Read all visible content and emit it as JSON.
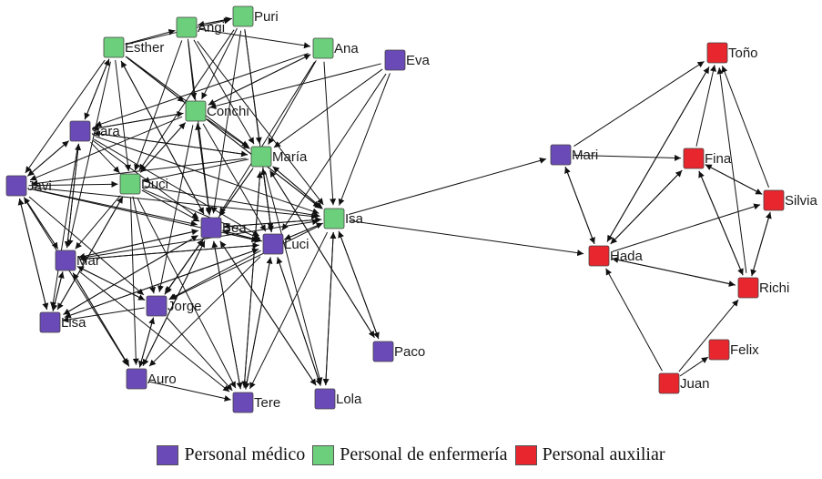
{
  "colors": {
    "medico": "#6a4ab6",
    "enfermeria": "#6ccf7b",
    "auxiliar": "#e8262e",
    "edge": "#111111"
  },
  "legend": [
    {
      "group": "medico",
      "label": "Personal médico"
    },
    {
      "group": "enfermeria",
      "label": "Personal de enfermería"
    },
    {
      "group": "auxiliar",
      "label": "Personal auxiliar"
    }
  ],
  "nodes": [
    {
      "id": "Angi",
      "label": "Angi",
      "group": "enfermeria"
    },
    {
      "id": "Puri",
      "label": "Puri",
      "group": "enfermeria"
    },
    {
      "id": "Esther",
      "label": "Esther",
      "group": "enfermeria"
    },
    {
      "id": "Ana",
      "label": "Ana",
      "group": "enfermeria"
    },
    {
      "id": "Eva",
      "label": "Eva",
      "group": "medico"
    },
    {
      "id": "Conchi",
      "label": "Conchi",
      "group": "enfermeria"
    },
    {
      "id": "Sara",
      "label": "Sara",
      "group": "medico"
    },
    {
      "id": "Maria",
      "label": "María",
      "group": "enfermeria"
    },
    {
      "id": "Javi",
      "label": "Javi",
      "group": "medico"
    },
    {
      "id": "Duci",
      "label": "Duci",
      "group": "enfermeria"
    },
    {
      "id": "Isa",
      "label": "Isa",
      "group": "enfermeria"
    },
    {
      "id": "Bea",
      "label": "Bea",
      "group": "medico"
    },
    {
      "id": "Luci",
      "label": "Luci",
      "group": "medico"
    },
    {
      "id": "Mar",
      "label": "Mar",
      "group": "medico"
    },
    {
      "id": "Jorge",
      "label": "Jorge",
      "group": "medico"
    },
    {
      "id": "Lisa",
      "label": "Lisa",
      "group": "medico"
    },
    {
      "id": "Paco",
      "label": "Paco",
      "group": "medico"
    },
    {
      "id": "Auro",
      "label": "Auro",
      "group": "medico"
    },
    {
      "id": "Tere",
      "label": "Tere",
      "group": "medico"
    },
    {
      "id": "Lola",
      "label": "Lola",
      "group": "medico"
    },
    {
      "id": "Tono",
      "label": "Toño",
      "group": "auxiliar"
    },
    {
      "id": "Mari",
      "label": "Mari",
      "group": "medico"
    },
    {
      "id": "Fina",
      "label": "Fina",
      "group": "auxiliar"
    },
    {
      "id": "Silvia",
      "label": "Silvia",
      "group": "auxiliar"
    },
    {
      "id": "Hada",
      "label": "Hada",
      "group": "auxiliar"
    },
    {
      "id": "Richi",
      "label": "Richi",
      "group": "auxiliar"
    },
    {
      "id": "Felix",
      "label": "Felix",
      "group": "auxiliar"
    },
    {
      "id": "Juan",
      "label": "Juan",
      "group": "auxiliar"
    }
  ],
  "edges": [
    [
      "Esther",
      "Angi"
    ],
    [
      "Angi",
      "Puri"
    ],
    [
      "Puri",
      "Angi"
    ],
    [
      "Angi",
      "Ana"
    ],
    [
      "Esther",
      "Puri"
    ],
    [
      "Esther",
      "Conchi"
    ],
    [
      "Esther",
      "Sara"
    ],
    [
      "Esther",
      "Javi"
    ],
    [
      "Esther",
      "Maria"
    ],
    [
      "Esther",
      "Isa"
    ],
    [
      "Esther",
      "Bea"
    ],
    [
      "Esther",
      "Duci"
    ],
    [
      "Esther",
      "Mar"
    ],
    [
      "Sara",
      "Esther"
    ],
    [
      "Angi",
      "Conchi"
    ],
    [
      "Angi",
      "Maria"
    ],
    [
      "Angi",
      "Bea"
    ],
    [
      "Angi",
      "Duci"
    ],
    [
      "Angi",
      "Isa"
    ],
    [
      "Puri",
      "Conchi"
    ],
    [
      "Puri",
      "Maria"
    ],
    [
      "Puri",
      "Duci"
    ],
    [
      "Puri",
      "Bea"
    ],
    [
      "Puri",
      "Luci"
    ],
    [
      "Ana",
      "Conchi"
    ],
    [
      "Ana",
      "Maria"
    ],
    [
      "Ana",
      "Bea"
    ],
    [
      "Ana",
      "Isa"
    ],
    [
      "Ana",
      "Sara"
    ],
    [
      "Eva",
      "Maria"
    ],
    [
      "Eva",
      "Isa"
    ],
    [
      "Eva",
      "Luci"
    ],
    [
      "Eva",
      "Conchi"
    ],
    [
      "Conchi",
      "Ana"
    ],
    [
      "Conchi",
      "Sara"
    ],
    [
      "Conchi",
      "Javi"
    ],
    [
      "Conchi",
      "Maria"
    ],
    [
      "Conchi",
      "Isa"
    ],
    [
      "Conchi",
      "Bea"
    ],
    [
      "Conchi",
      "Duci"
    ],
    [
      "Conchi",
      "Luci"
    ],
    [
      "Conchi",
      "Jorge"
    ],
    [
      "Sara",
      "Conchi"
    ],
    [
      "Sara",
      "Maria"
    ],
    [
      "Sara",
      "Isa"
    ],
    [
      "Sara",
      "Bea"
    ],
    [
      "Sara",
      "Duci"
    ],
    [
      "Sara",
      "Javi"
    ],
    [
      "Sara",
      "Luci"
    ],
    [
      "Sara",
      "Mar"
    ],
    [
      "Sara",
      "Lisa"
    ],
    [
      "Maria",
      "Isa"
    ],
    [
      "Maria",
      "Bea"
    ],
    [
      "Maria",
      "Luci"
    ],
    [
      "Maria",
      "Javi"
    ],
    [
      "Maria",
      "Sara"
    ],
    [
      "Maria",
      "Duci"
    ],
    [
      "Maria",
      "Jorge"
    ],
    [
      "Maria",
      "Tere"
    ],
    [
      "Maria",
      "Lola"
    ],
    [
      "Maria",
      "Paco"
    ],
    [
      "Javi",
      "Sara"
    ],
    [
      "Javi",
      "Duci"
    ],
    [
      "Javi",
      "Bea"
    ],
    [
      "Javi",
      "Isa"
    ],
    [
      "Javi",
      "Mar"
    ],
    [
      "Javi",
      "Lisa"
    ],
    [
      "Javi",
      "Jorge"
    ],
    [
      "Javi",
      "Auro"
    ],
    [
      "Javi",
      "Luci"
    ],
    [
      "Duci",
      "Bea"
    ],
    [
      "Duci",
      "Luci"
    ],
    [
      "Duci",
      "Isa"
    ],
    [
      "Duci",
      "Jorge"
    ],
    [
      "Duci",
      "Auro"
    ],
    [
      "Duci",
      "Tere"
    ],
    [
      "Duci",
      "Mar"
    ],
    [
      "Duci",
      "Lisa"
    ],
    [
      "Duci",
      "Conchi"
    ],
    [
      "Isa",
      "Bea"
    ],
    [
      "Isa",
      "Luci"
    ],
    [
      "Isa",
      "Maria"
    ],
    [
      "Isa",
      "Paco"
    ],
    [
      "Isa",
      "Lola"
    ],
    [
      "Isa",
      "Tere"
    ],
    [
      "Isa",
      "Mari"
    ],
    [
      "Isa",
      "Hada"
    ],
    [
      "Isa",
      "Jorge"
    ],
    [
      "Bea",
      "Luci"
    ],
    [
      "Bea",
      "Isa"
    ],
    [
      "Bea",
      "Mar"
    ],
    [
      "Bea",
      "Jorge"
    ],
    [
      "Bea",
      "Lisa"
    ],
    [
      "Bea",
      "Auro"
    ],
    [
      "Bea",
      "Tere"
    ],
    [
      "Bea",
      "Lola"
    ],
    [
      "Bea",
      "Conchi"
    ],
    [
      "Bea",
      "Esther"
    ],
    [
      "Luci",
      "Bea"
    ],
    [
      "Luci",
      "Isa"
    ],
    [
      "Luci",
      "Mar"
    ],
    [
      "Luci",
      "Jorge"
    ],
    [
      "Luci",
      "Tere"
    ],
    [
      "Luci",
      "Lola"
    ],
    [
      "Luci",
      "Auro"
    ],
    [
      "Luci",
      "Lisa"
    ],
    [
      "Luci",
      "Maria"
    ],
    [
      "Mar",
      "Bea"
    ],
    [
      "Mar",
      "Luci"
    ],
    [
      "Mar",
      "Jorge"
    ],
    [
      "Mar",
      "Lisa"
    ],
    [
      "Mar",
      "Auro"
    ],
    [
      "Mar",
      "Javi"
    ],
    [
      "Mar",
      "Sara"
    ],
    [
      "Mar",
      "Tere"
    ],
    [
      "Mar",
      "Isa"
    ],
    [
      "Jorge",
      "Bea"
    ],
    [
      "Jorge",
      "Auro"
    ],
    [
      "Jorge",
      "Tere"
    ],
    [
      "Jorge",
      "Mar"
    ],
    [
      "Jorge",
      "Lisa"
    ],
    [
      "Lisa",
      "Mar"
    ],
    [
      "Lisa",
      "Bea"
    ],
    [
      "Lisa",
      "Duci"
    ],
    [
      "Lisa",
      "Javi"
    ],
    [
      "Lisa",
      "Luci"
    ],
    [
      "Auro",
      "Tere"
    ],
    [
      "Auro",
      "Jorge"
    ],
    [
      "Auro",
      "Bea"
    ],
    [
      "Auro",
      "Mar"
    ],
    [
      "Tere",
      "Bea"
    ],
    [
      "Tere",
      "Luci"
    ],
    [
      "Tere",
      "Maria"
    ],
    [
      "Lola",
      "Luci"
    ],
    [
      "Lola",
      "Isa"
    ],
    [
      "Lola",
      "Bea"
    ],
    [
      "Paco",
      "Isa"
    ],
    [
      "Paco",
      "Maria"
    ],
    [
      "Mari",
      "Fina"
    ],
    [
      "Mari",
      "Hada"
    ],
    [
      "Mari",
      "Tono"
    ],
    [
      "Hada",
      "Mari"
    ],
    [
      "Hada",
      "Tono"
    ],
    [
      "Hada",
      "Fina"
    ],
    [
      "Hada",
      "Silvia"
    ],
    [
      "Hada",
      "Richi"
    ],
    [
      "Fina",
      "Tono"
    ],
    [
      "Fina",
      "Silvia"
    ],
    [
      "Fina",
      "Richi"
    ],
    [
      "Fina",
      "Hada"
    ],
    [
      "Silvia",
      "Tono"
    ],
    [
      "Silvia",
      "Richi"
    ],
    [
      "Silvia",
      "Fina"
    ],
    [
      "Richi",
      "Silvia"
    ],
    [
      "Richi",
      "Hada"
    ],
    [
      "Richi",
      "Fina"
    ],
    [
      "Richi",
      "Tono"
    ],
    [
      "Juan",
      "Hada"
    ],
    [
      "Juan",
      "Richi"
    ],
    [
      "Juan",
      "Felix"
    ],
    [
      "Tono",
      "Hada"
    ]
  ]
}
